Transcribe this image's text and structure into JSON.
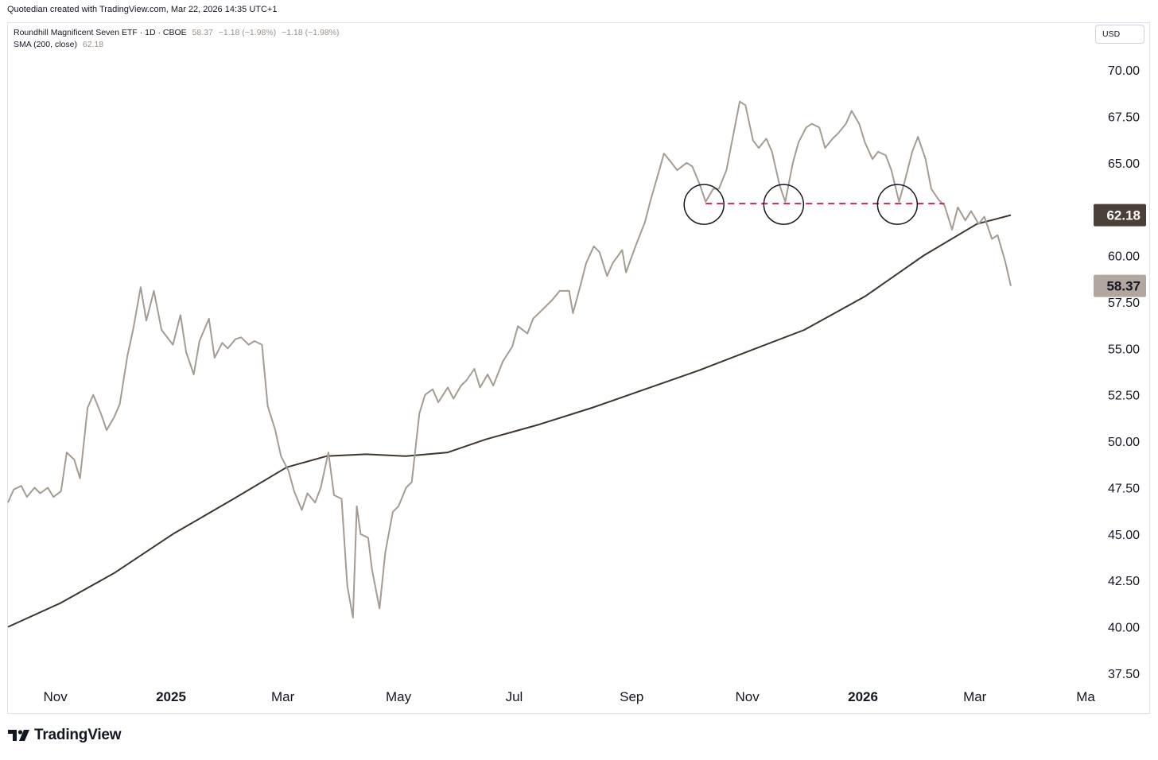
{
  "header": {
    "credit": "Quotedian created with TradingView.com, Mar 22, 2026 14:35 UTC+1"
  },
  "legend": {
    "symbol": "Roundhill Magnificent Seven ETF · 1D · CBOE",
    "last": "58.37",
    "change1": "−1.18 (−1.98%)",
    "change2": "−1.18 (−1.98%)",
    "sma_label": "SMA (200, close)",
    "sma_value": "62.18"
  },
  "currency": "USD",
  "footer": {
    "brand": "TradingView"
  },
  "colors": {
    "price": "#a59b91",
    "sma": "#3e352d",
    "sma_badge": "#4a4038",
    "price_badge": "#b1a79e",
    "dashed": "#d1244f",
    "circle": "#131722"
  },
  "chart_data": {
    "type": "line",
    "y_axis": {
      "min": 37.5,
      "max": 70,
      "ticks": [
        "70.00",
        "67.50",
        "65.00",
        "62.50",
        "60.00",
        "57.50",
        "55.00",
        "52.50",
        "50.00",
        "47.50",
        "45.00",
        "42.50",
        "40.00",
        "37.50"
      ]
    },
    "x_tick_labels": [
      {
        "label": "Nov",
        "bold": false,
        "date": "2024-11-01"
      },
      {
        "label": "2025",
        "bold": true,
        "date": "2025-01-01"
      },
      {
        "label": "Mar",
        "bold": false,
        "date": "2025-03-01"
      },
      {
        "label": "May",
        "bold": false,
        "date": "2025-05-01"
      },
      {
        "label": "Jul",
        "bold": false,
        "date": "2025-07-01"
      },
      {
        "label": "Sep",
        "bold": false,
        "date": "2025-09-01"
      },
      {
        "label": "Nov",
        "bold": false,
        "date": "2025-11-01"
      },
      {
        "label": "2026",
        "bold": true,
        "date": "2026-01-01"
      },
      {
        "label": "Mar",
        "bold": false,
        "date": "2026-03-01"
      },
      {
        "label": "Ma",
        "bold": false,
        "date": "2026-05-01"
      }
    ],
    "series": [
      {
        "name": "Roundhill Magnificent Seven ETF",
        "points": [
          [
            "2024-10-07",
            46.7
          ],
          [
            "2024-10-10",
            47.4
          ],
          [
            "2024-10-14",
            47.6
          ],
          [
            "2024-10-17",
            47.0
          ],
          [
            "2024-10-21",
            47.5
          ],
          [
            "2024-10-24",
            47.2
          ],
          [
            "2024-10-28",
            47.5
          ],
          [
            "2024-10-31",
            47.0
          ],
          [
            "2024-11-04",
            47.3
          ],
          [
            "2024-11-07",
            49.4
          ],
          [
            "2024-11-11",
            49.0
          ],
          [
            "2024-11-14",
            48.0
          ],
          [
            "2024-11-18",
            51.8
          ],
          [
            "2024-11-21",
            52.5
          ],
          [
            "2024-11-25",
            51.5
          ],
          [
            "2024-11-28",
            50.6
          ],
          [
            "2024-12-02",
            51.3
          ],
          [
            "2024-12-05",
            52.0
          ],
          [
            "2024-12-09",
            54.6
          ],
          [
            "2024-12-12",
            56.0
          ],
          [
            "2024-12-16",
            58.3
          ],
          [
            "2024-12-19",
            56.5
          ],
          [
            "2024-12-23",
            58.1
          ],
          [
            "2024-12-27",
            56.0
          ],
          [
            "2025-01-02",
            55.2
          ],
          [
            "2025-01-06",
            56.8
          ],
          [
            "2025-01-09",
            54.8
          ],
          [
            "2025-01-13",
            53.6
          ],
          [
            "2025-01-16",
            55.4
          ],
          [
            "2025-01-21",
            56.6
          ],
          [
            "2025-01-24",
            54.5
          ],
          [
            "2025-01-28",
            55.3
          ],
          [
            "2025-01-31",
            55.0
          ],
          [
            "2025-02-04",
            55.5
          ],
          [
            "2025-02-07",
            55.6
          ],
          [
            "2025-02-11",
            55.2
          ],
          [
            "2025-02-14",
            55.4
          ],
          [
            "2025-02-18",
            55.2
          ],
          [
            "2025-02-21",
            51.9
          ],
          [
            "2025-02-25",
            50.6
          ],
          [
            "2025-02-28",
            49.2
          ],
          [
            "2025-03-04",
            48.4
          ],
          [
            "2025-03-07",
            47.3
          ],
          [
            "2025-03-11",
            46.3
          ],
          [
            "2025-03-14",
            47.2
          ],
          [
            "2025-03-18",
            46.7
          ],
          [
            "2025-03-21",
            47.5
          ],
          [
            "2025-03-25",
            49.4
          ],
          [
            "2025-03-28",
            47.1
          ],
          [
            "2025-04-01",
            46.9
          ],
          [
            "2025-04-04",
            42.2
          ],
          [
            "2025-04-07",
            40.5
          ],
          [
            "2025-04-09",
            46.5
          ],
          [
            "2025-04-11",
            45.0
          ],
          [
            "2025-04-15",
            44.8
          ],
          [
            "2025-04-17",
            43.1
          ],
          [
            "2025-04-21",
            41.0
          ],
          [
            "2025-04-24",
            44.0
          ],
          [
            "2025-04-28",
            46.2
          ],
          [
            "2025-05-01",
            46.5
          ],
          [
            "2025-05-05",
            47.5
          ],
          [
            "2025-05-08",
            47.8
          ],
          [
            "2025-05-12",
            51.5
          ],
          [
            "2025-05-15",
            52.5
          ],
          [
            "2025-05-19",
            52.8
          ],
          [
            "2025-05-22",
            52.1
          ],
          [
            "2025-05-27",
            52.9
          ],
          [
            "2025-05-30",
            52.3
          ],
          [
            "2025-06-03",
            53.0
          ],
          [
            "2025-06-06",
            53.3
          ],
          [
            "2025-06-10",
            53.9
          ],
          [
            "2025-06-13",
            52.9
          ],
          [
            "2025-06-17",
            53.6
          ],
          [
            "2025-06-20",
            53.0
          ],
          [
            "2025-06-25",
            54.3
          ],
          [
            "2025-06-30",
            55.1
          ],
          [
            "2025-07-03",
            56.2
          ],
          [
            "2025-07-08",
            55.8
          ],
          [
            "2025-07-11",
            56.6
          ],
          [
            "2025-07-16",
            57.1
          ],
          [
            "2025-07-21",
            57.6
          ],
          [
            "2025-07-25",
            58.1
          ],
          [
            "2025-07-30",
            58.1
          ],
          [
            "2025-08-01",
            56.9
          ],
          [
            "2025-08-05",
            58.4
          ],
          [
            "2025-08-08",
            59.6
          ],
          [
            "2025-08-12",
            60.5
          ],
          [
            "2025-08-15",
            60.2
          ],
          [
            "2025-08-19",
            58.9
          ],
          [
            "2025-08-22",
            59.6
          ],
          [
            "2025-08-27",
            60.3
          ],
          [
            "2025-08-29",
            59.1
          ],
          [
            "2025-09-03",
            60.5
          ],
          [
            "2025-09-08",
            61.8
          ],
          [
            "2025-09-11",
            63.0
          ],
          [
            "2025-09-15",
            64.4
          ],
          [
            "2025-09-18",
            65.5
          ],
          [
            "2025-09-22",
            65.0
          ],
          [
            "2025-09-25",
            64.6
          ],
          [
            "2025-09-30",
            65.0
          ],
          [
            "2025-10-03",
            64.8
          ],
          [
            "2025-10-07",
            63.8
          ],
          [
            "2025-10-10",
            62.9
          ],
          [
            "2025-10-14",
            63.6
          ],
          [
            "2025-10-17",
            63.6
          ],
          [
            "2025-10-21",
            64.6
          ],
          [
            "2025-10-24",
            66.2
          ],
          [
            "2025-10-28",
            68.3
          ],
          [
            "2025-10-31",
            68.1
          ],
          [
            "2025-11-04",
            66.2
          ],
          [
            "2025-11-07",
            65.8
          ],
          [
            "2025-11-11",
            66.3
          ],
          [
            "2025-11-14",
            65.6
          ],
          [
            "2025-11-18",
            63.8
          ],
          [
            "2025-11-21",
            62.9
          ],
          [
            "2025-11-25",
            65.0
          ],
          [
            "2025-11-28",
            66.1
          ],
          [
            "2025-12-02",
            66.9
          ],
          [
            "2025-12-05",
            67.1
          ],
          [
            "2025-12-09",
            66.9
          ],
          [
            "2025-12-12",
            65.8
          ],
          [
            "2025-12-16",
            66.3
          ],
          [
            "2025-12-19",
            66.6
          ],
          [
            "2025-12-23",
            67.1
          ],
          [
            "2025-12-26",
            67.8
          ],
          [
            "2025-12-30",
            67.1
          ],
          [
            "2026-01-02",
            66.1
          ],
          [
            "2026-01-06",
            65.2
          ],
          [
            "2026-01-09",
            65.6
          ],
          [
            "2026-01-13",
            65.4
          ],
          [
            "2026-01-16",
            64.6
          ],
          [
            "2026-01-20",
            62.9
          ],
          [
            "2026-01-23",
            64.0
          ],
          [
            "2026-01-27",
            65.6
          ],
          [
            "2026-01-30",
            66.4
          ],
          [
            "2026-02-03",
            65.2
          ],
          [
            "2026-02-06",
            63.6
          ],
          [
            "2026-02-10",
            63.0
          ],
          [
            "2026-02-13",
            62.7
          ],
          [
            "2026-02-17",
            61.4
          ],
          [
            "2026-02-20",
            62.6
          ],
          [
            "2026-02-24",
            61.9
          ],
          [
            "2026-02-27",
            62.4
          ],
          [
            "2026-03-03",
            61.7
          ],
          [
            "2026-03-06",
            62.1
          ],
          [
            "2026-03-10",
            60.9
          ],
          [
            "2026-03-13",
            61.1
          ],
          [
            "2026-03-17",
            59.7
          ],
          [
            "2026-03-20",
            58.37
          ]
        ]
      },
      {
        "name": "SMA (200, close)",
        "points": [
          [
            "2024-10-07",
            40.0
          ],
          [
            "2024-11-04",
            41.3
          ],
          [
            "2024-12-02",
            42.9
          ],
          [
            "2025-01-02",
            45.0
          ],
          [
            "2025-02-03",
            46.9
          ],
          [
            "2025-03-03",
            48.6
          ],
          [
            "2025-03-24",
            49.2
          ],
          [
            "2025-04-14",
            49.3
          ],
          [
            "2025-05-05",
            49.2
          ],
          [
            "2025-05-27",
            49.4
          ],
          [
            "2025-06-16",
            50.1
          ],
          [
            "2025-07-14",
            50.9
          ],
          [
            "2025-08-11",
            51.8
          ],
          [
            "2025-09-08",
            52.8
          ],
          [
            "2025-10-06",
            53.8
          ],
          [
            "2025-11-03",
            54.9
          ],
          [
            "2025-12-01",
            56.0
          ],
          [
            "2026-01-02",
            57.8
          ],
          [
            "2026-02-02",
            60.0
          ],
          [
            "2026-03-02",
            61.7
          ],
          [
            "2026-03-20",
            62.18
          ]
        ]
      }
    ],
    "support_level": 62.8,
    "support_range": [
      "2025-10-10",
      "2026-02-13"
    ],
    "support_touches": [
      "2025-10-10",
      "2025-11-21",
      "2026-01-20"
    ],
    "last_price_label": "58.37",
    "sma_last_label": "62.18"
  }
}
